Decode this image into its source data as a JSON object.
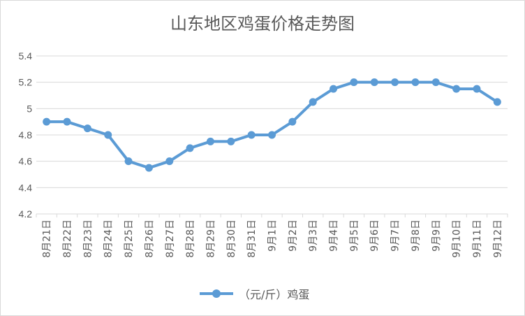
{
  "chart_data": {
    "type": "line",
    "title": "山东地区鸡蛋价格走势图",
    "categories": [
      "8月21日",
      "8月22日",
      "8月23日",
      "8月24日",
      "8月25日",
      "8月26日",
      "8月27日",
      "8月28日",
      "8月29日",
      "8月30日",
      "8月31日",
      "9月1日",
      "9月2日",
      "9月3日",
      "9月4日",
      "9月5日",
      "9月6日",
      "9月7日",
      "9月8日",
      "9月9日",
      "9月10日",
      "9月11日",
      "9月12日"
    ],
    "series": [
      {
        "name": "（元/斤）鸡蛋",
        "values": [
          4.9,
          4.9,
          4.85,
          4.8,
          4.6,
          4.55,
          4.6,
          4.7,
          4.75,
          4.75,
          4.8,
          4.8,
          4.9,
          5.05,
          5.15,
          5.2,
          5.2,
          5.2,
          5.2,
          5.2,
          5.15,
          5.15,
          5.05
        ],
        "color": "#5b9bd5"
      }
    ],
    "ylim": [
      4.2,
      5.4
    ],
    "yticks": [
      "4.2",
      "4.4",
      "4.6",
      "4.8",
      "5",
      "5.2",
      "5.4"
    ],
    "grid": true,
    "legend": "bottom"
  }
}
